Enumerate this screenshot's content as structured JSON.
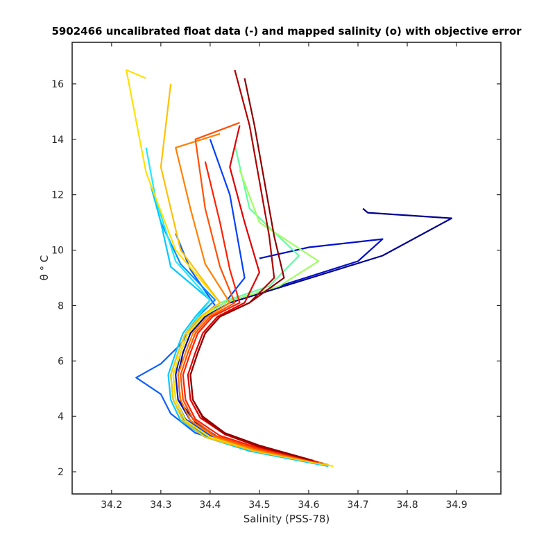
{
  "chart_data": {
    "type": "line",
    "title": "5902466 uncalibrated float data (-) and mapped salinity (o) with objective error",
    "xlabel": "Salinity (PSS-78)",
    "ylabel": "θ ° C",
    "xlim": [
      34.12,
      34.99
    ],
    "ylim": [
      1.2,
      17.5
    ],
    "xticks": [
      34.2,
      34.3,
      34.4,
      34.5,
      34.6,
      34.7,
      34.8,
      34.9
    ],
    "yticks": [
      2,
      4,
      6,
      8,
      10,
      12,
      14,
      16
    ],
    "xtick_labels": [
      "34.2",
      "34.3",
      "34.4",
      "34.5",
      "34.6",
      "34.7",
      "34.8",
      "34.9"
    ],
    "ytick_labels": [
      "2",
      "4",
      "6",
      "8",
      "10",
      "12",
      "14",
      "16"
    ],
    "grid": false,
    "legend": "none",
    "colormap": "jet",
    "series": [
      {
        "color": "#00008f",
        "x": [
          34.64,
          34.5,
          34.42,
          34.37,
          34.34,
          34.335,
          34.345,
          34.36,
          34.39,
          34.44,
          34.55,
          34.75,
          34.89,
          34.72,
          34.71
        ],
        "y": [
          2.25,
          2.8,
          3.2,
          3.8,
          4.5,
          5.5,
          6.3,
          7.0,
          7.6,
          8.1,
          8.7,
          9.8,
          11.15,
          11.35,
          11.5
        ]
      },
      {
        "color": "#0010c8",
        "x": [
          34.63,
          34.49,
          34.41,
          34.36,
          34.335,
          34.33,
          34.34,
          34.355,
          34.385,
          34.43,
          34.54,
          34.7,
          34.75,
          34.6,
          34.5
        ],
        "y": [
          2.3,
          2.85,
          3.25,
          3.85,
          4.6,
          5.5,
          6.3,
          7.0,
          7.6,
          8.1,
          8.7,
          9.6,
          10.4,
          10.1,
          9.7
        ]
      },
      {
        "color": "#0040ff",
        "x": [
          34.63,
          34.48,
          34.4,
          34.35,
          34.33,
          34.325,
          34.34,
          34.355,
          34.38,
          34.43,
          34.47,
          34.44,
          34.4
        ],
        "y": [
          2.3,
          2.85,
          3.3,
          3.9,
          4.6,
          5.5,
          6.3,
          7.0,
          7.6,
          8.1,
          9.0,
          12.0,
          14.0
        ]
      },
      {
        "color": "#1060ff",
        "x": [
          34.62,
          34.46,
          34.37,
          34.32,
          34.3,
          34.25,
          34.3,
          34.34,
          34.37,
          34.41,
          34.36,
          34.33
        ],
        "y": [
          2.35,
          2.9,
          3.4,
          4.1,
          4.8,
          5.4,
          5.9,
          6.6,
          7.4,
          8.0,
          9.3,
          10.6
        ]
      },
      {
        "color": "#0090ff",
        "x": [
          34.62,
          34.47,
          34.39,
          34.345,
          34.325,
          34.32,
          34.335,
          34.35,
          34.375,
          34.41,
          34.34,
          34.3
        ],
        "y": [
          2.3,
          2.85,
          3.3,
          3.9,
          4.6,
          5.5,
          6.3,
          7.0,
          7.6,
          8.2,
          9.5,
          11.0
        ]
      },
      {
        "color": "#00c8ff",
        "x": [
          34.64,
          34.48,
          34.39,
          34.34,
          34.32,
          34.315,
          34.33,
          34.345,
          34.37,
          34.4,
          34.32,
          34.3,
          34.28
        ],
        "y": [
          2.2,
          2.75,
          3.25,
          3.85,
          4.6,
          5.5,
          6.3,
          7.0,
          7.6,
          8.2,
          9.4,
          11.0,
          12.3
        ]
      },
      {
        "color": "#20e8ff",
        "x": [
          34.63,
          34.48,
          34.39,
          34.345,
          34.325,
          34.32,
          34.335,
          34.35,
          34.375,
          34.4,
          34.33,
          34.29,
          34.27
        ],
        "y": [
          2.25,
          2.8,
          3.25,
          3.85,
          4.6,
          5.5,
          6.3,
          7.0,
          7.6,
          8.2,
          9.6,
          11.8,
          13.7
        ]
      },
      {
        "color": "#60ffa0",
        "x": [
          34.62,
          34.48,
          34.4,
          34.35,
          34.33,
          34.325,
          34.34,
          34.355,
          34.385,
          34.42,
          34.52,
          34.58,
          34.48,
          34.45
        ],
        "y": [
          2.3,
          2.8,
          3.25,
          3.85,
          4.6,
          5.5,
          6.3,
          7.0,
          7.6,
          8.1,
          8.7,
          9.8,
          11.5,
          13.8
        ]
      },
      {
        "color": "#a0ff60",
        "x": [
          34.62,
          34.48,
          34.4,
          34.35,
          34.33,
          34.325,
          34.34,
          34.355,
          34.385,
          34.43,
          34.54,
          34.62,
          34.5,
          34.46
        ],
        "y": [
          2.3,
          2.8,
          3.25,
          3.85,
          4.6,
          5.5,
          6.3,
          7.0,
          7.6,
          8.1,
          8.7,
          9.6,
          11.0,
          12.9
        ]
      },
      {
        "color": "#ffe000",
        "x": [
          34.65,
          34.49,
          34.4,
          34.35,
          34.33,
          34.325,
          34.34,
          34.355,
          34.385,
          34.42,
          34.33,
          34.27,
          34.23,
          34.27
        ],
        "y": [
          2.2,
          2.75,
          3.25,
          3.85,
          4.6,
          5.5,
          6.3,
          7.0,
          7.6,
          8.1,
          10.0,
          12.8,
          16.5,
          16.2
        ]
      },
      {
        "color": "#ffc000",
        "x": [
          34.64,
          34.48,
          34.39,
          34.345,
          34.325,
          34.32,
          34.335,
          34.35,
          34.38,
          34.42,
          34.34,
          34.3,
          34.32
        ],
        "y": [
          2.25,
          2.8,
          3.25,
          3.85,
          4.6,
          5.5,
          6.3,
          7.0,
          7.6,
          8.1,
          10.0,
          13.0,
          16.0
        ]
      },
      {
        "color": "#ff8000",
        "x": [
          34.63,
          34.49,
          34.41,
          34.36,
          34.34,
          34.335,
          34.35,
          34.365,
          34.395,
          34.44,
          34.39,
          34.36,
          34.33,
          34.42
        ],
        "y": [
          2.3,
          2.8,
          3.25,
          3.85,
          4.6,
          5.5,
          6.3,
          7.0,
          7.6,
          8.1,
          9.5,
          11.5,
          13.7,
          14.2
        ]
      },
      {
        "color": "#ff5000",
        "x": [
          34.62,
          34.49,
          34.41,
          34.365,
          34.345,
          34.34,
          34.355,
          34.37,
          34.4,
          34.45,
          34.42,
          34.39,
          34.37,
          34.46
        ],
        "y": [
          2.35,
          2.85,
          3.3,
          3.9,
          4.6,
          5.5,
          6.3,
          7.0,
          7.6,
          8.1,
          9.4,
          11.5,
          14.0,
          14.6
        ]
      },
      {
        "color": "#ff2000",
        "x": [
          34.62,
          34.5,
          34.42,
          34.37,
          34.35,
          34.345,
          34.36,
          34.375,
          34.405,
          34.46,
          34.44,
          34.42,
          34.39
        ],
        "y": [
          2.35,
          2.85,
          3.3,
          3.9,
          4.6,
          5.5,
          6.3,
          7.0,
          7.6,
          8.1,
          9.3,
          11.0,
          13.2
        ]
      },
      {
        "color": "#e00000",
        "x": [
          34.61,
          34.5,
          34.43,
          34.38,
          34.36,
          34.355,
          34.37,
          34.385,
          34.415,
          34.47,
          34.5,
          34.47,
          34.44,
          34.46
        ],
        "y": [
          2.4,
          2.9,
          3.35,
          3.95,
          4.6,
          5.5,
          6.3,
          7.0,
          7.6,
          8.1,
          9.2,
          11.0,
          13.0,
          14.5
        ]
      },
      {
        "color": "#b00000",
        "x": [
          34.61,
          34.5,
          34.43,
          34.385,
          34.365,
          34.36,
          34.375,
          34.39,
          34.42,
          34.48,
          34.53,
          34.52,
          34.5,
          34.48,
          34.45
        ],
        "y": [
          2.4,
          2.9,
          3.35,
          3.95,
          4.6,
          5.5,
          6.3,
          7.0,
          7.6,
          8.1,
          9.0,
          10.5,
          12.5,
          14.5,
          16.5
        ]
      },
      {
        "color": "#900000",
        "x": [
          34.6,
          34.5,
          34.43,
          34.385,
          34.365,
          34.36,
          34.375,
          34.39,
          34.42,
          34.48,
          34.55,
          34.53,
          34.51,
          34.49,
          34.47
        ],
        "y": [
          2.45,
          2.95,
          3.4,
          4.0,
          4.6,
          5.5,
          6.3,
          7.0,
          7.6,
          8.1,
          9.0,
          10.5,
          12.5,
          14.5,
          16.2
        ]
      }
    ]
  }
}
